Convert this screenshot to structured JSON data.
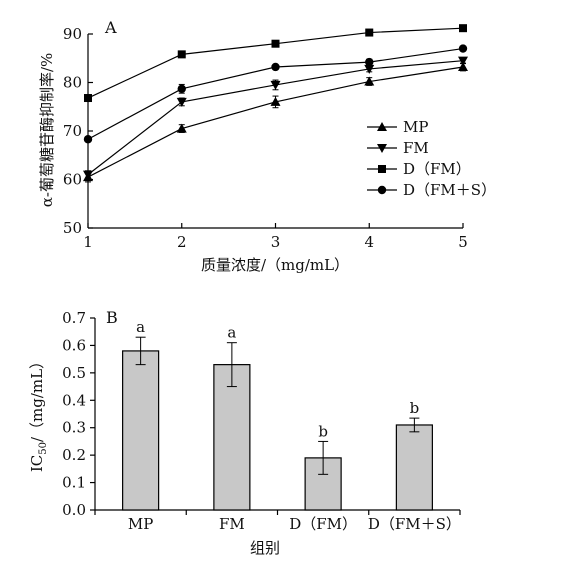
{
  "chart_data": [
    {
      "panel": "A",
      "type": "line",
      "xlabel": "质量浓度/（mg/mL）",
      "ylabel": "α-葡萄糖苷酶抑制率/%",
      "x": [
        1,
        2,
        3,
        4,
        5
      ],
      "xlim": [
        1,
        5
      ],
      "ylim": [
        50,
        90
      ],
      "xticks": [
        "1",
        "2",
        "3",
        "4",
        "5"
      ],
      "yticks": [
        "50",
        "60",
        "70",
        "80",
        "90"
      ],
      "grid": false,
      "legend_position": "right",
      "series": [
        {
          "name": "MP",
          "marker": "triangle-up",
          "values": [
            60.5,
            70.5,
            76.0,
            80.2,
            83.2
          ],
          "errors": [
            1.0,
            0.8,
            1.2,
            0.8,
            0.8
          ]
        },
        {
          "name": "FM",
          "marker": "triangle-down",
          "values": [
            61.0,
            76.0,
            79.5,
            82.8,
            84.5
          ],
          "errors": [
            0.8,
            0.8,
            1.0,
            0.6,
            0.6
          ]
        },
        {
          "name": "D（FM）",
          "marker": "square",
          "values": [
            76.8,
            85.8,
            88.0,
            90.3,
            91.2
          ],
          "errors": [
            0.5,
            0.4,
            0.4,
            0.4,
            0.4
          ]
        },
        {
          "name": "D（FM＋S）",
          "marker": "circle",
          "values": [
            68.3,
            78.7,
            83.2,
            84.2,
            87.0
          ],
          "errors": [
            0.5,
            0.9,
            0.4,
            0.6,
            0.4
          ]
        }
      ]
    },
    {
      "panel": "B",
      "type": "bar",
      "xlabel": "组别",
      "ylabel_main": "IC",
      "ylabel_sub": "50",
      "ylabel_rest": "/（mg/mL）",
      "categories": [
        "MP",
        "FM",
        "D（FM）",
        "D（FM＋S）"
      ],
      "values": [
        0.58,
        0.53,
        0.19,
        0.31
      ],
      "errors": [
        0.05,
        0.08,
        0.06,
        0.025
      ],
      "significance": [
        "a",
        "a",
        "b",
        "b"
      ],
      "ylim": [
        0,
        0.7
      ],
      "yticks": [
        "0.0",
        "0.1",
        "0.2",
        "0.3",
        "0.4",
        "0.5",
        "0.6",
        "0.7"
      ],
      "grid": false
    }
  ]
}
